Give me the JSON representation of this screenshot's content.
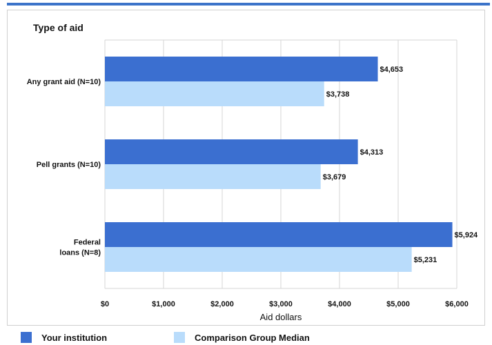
{
  "chart_data": {
    "type": "bar",
    "orientation": "horizontal",
    "ylabel": "Type of aid",
    "xlabel": "Aid dollars",
    "categories": [
      "Any grant aid (N=10)",
      "Pell grants (N=10)",
      "Federal loans (N=8)"
    ],
    "category_lines": [
      [
        "Any grant aid (N=10)"
      ],
      [
        "Pell grants (N=10)"
      ],
      [
        "Federal",
        "loans (N=8)"
      ]
    ],
    "series": [
      {
        "name": "Your institution",
        "values": [
          4653,
          4313,
          5924
        ],
        "labels": [
          "$4,653",
          "$4,313",
          "$5,924"
        ],
        "color": "#3b6fd0"
      },
      {
        "name": "Comparison Group Median",
        "values": [
          3738,
          3679,
          5231
        ],
        "labels": [
          "$3,738",
          "$3,679",
          "$5,231"
        ],
        "color": "#b9dcfb"
      }
    ],
    "xlim": [
      0,
      6000
    ],
    "xticks": [
      0,
      1000,
      2000,
      3000,
      4000,
      5000,
      6000
    ],
    "xtick_labels": [
      "$0",
      "$1,000",
      "$2,000",
      "$3,000",
      "$4,000",
      "$5,000",
      "$6,000"
    ],
    "grid": true,
    "legend_position": "bottom"
  }
}
